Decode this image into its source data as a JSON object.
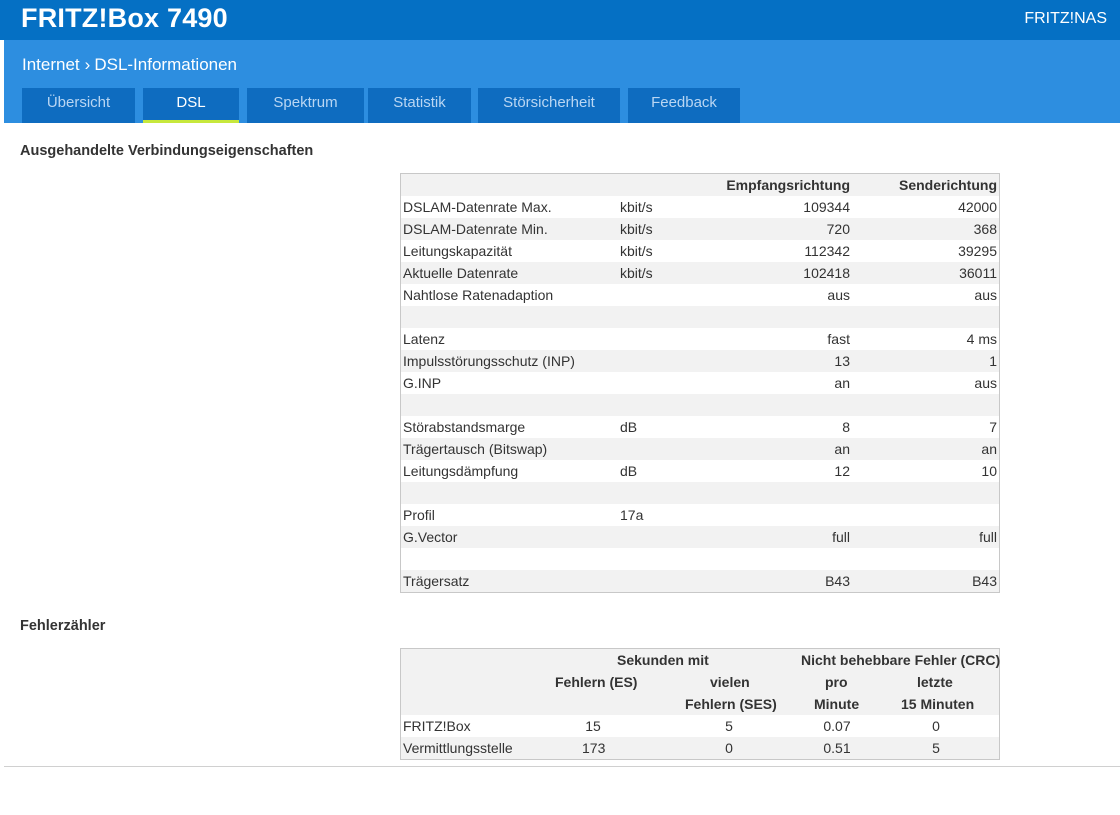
{
  "header": {
    "brand": "FRITZ!Box 7490",
    "nas_link": "FRITZ!NAS"
  },
  "breadcrumb": {
    "parent": "Internet",
    "separator": "›",
    "current": "DSL-Informationen"
  },
  "tabs": [
    {
      "label": "Übersicht",
      "active": false
    },
    {
      "label": "DSL",
      "active": true
    },
    {
      "label": "Spektrum",
      "active": false
    },
    {
      "label": "Statistik",
      "active": false
    },
    {
      "label": "Störsicherheit",
      "active": false
    },
    {
      "label": "Feedback",
      "active": false
    }
  ],
  "connection": {
    "title": "Ausgehandelte Verbindungseigenschaften",
    "col_rx": "Empfangsrichtung",
    "col_tx": "Senderichtung",
    "rows": [
      {
        "name": "DSLAM-Datenrate Max.",
        "unit": "kbit/s",
        "rx": "109344",
        "tx": "42000"
      },
      {
        "name": "DSLAM-Datenrate Min.",
        "unit": "kbit/s",
        "rx": "720",
        "tx": "368"
      },
      {
        "name": "Leitungskapazität",
        "unit": "kbit/s",
        "rx": "112342",
        "tx": "39295"
      },
      {
        "name": "Aktuelle Datenrate",
        "unit": "kbit/s",
        "rx": "102418",
        "tx": "36011"
      },
      {
        "name": "Nahtlose Ratenadaption",
        "unit": "",
        "rx": "aus",
        "tx": "aus"
      },
      {
        "name": "",
        "unit": "",
        "rx": "",
        "tx": ""
      },
      {
        "name": "Latenz",
        "unit": "",
        "rx": "fast",
        "tx": "4 ms"
      },
      {
        "name": "Impulsstörungsschutz (INP)",
        "unit": "",
        "rx": "13",
        "tx": "1"
      },
      {
        "name": "G.INP",
        "unit": "",
        "rx": "an",
        "tx": "aus"
      },
      {
        "name": "",
        "unit": "",
        "rx": "",
        "tx": ""
      },
      {
        "name": "Störabstandsmarge",
        "unit": "dB",
        "rx": "8",
        "tx": "7"
      },
      {
        "name": "Trägertausch (Bitswap)",
        "unit": "",
        "rx": "an",
        "tx": "an"
      },
      {
        "name": "Leitungsdämpfung",
        "unit": "dB",
        "rx": "12",
        "tx": "10"
      },
      {
        "name": "",
        "unit": "",
        "rx": "",
        "tx": ""
      },
      {
        "name": "Profil",
        "unit": "17a",
        "rx": "",
        "tx": ""
      },
      {
        "name": "G.Vector",
        "unit": "",
        "rx": "full",
        "tx": "full"
      },
      {
        "name": "",
        "unit": "",
        "rx": "",
        "tx": ""
      },
      {
        "name": "Trägersatz",
        "unit": "",
        "rx": "B43",
        "tx": "B43"
      }
    ]
  },
  "errors": {
    "title": "Fehlerzähler",
    "header_group1": "Sekunden mit",
    "header_group2": "Nicht behebbare Fehler (CRC)",
    "col_es": "Fehlern (ES)",
    "col_ses_1": "vielen",
    "col_ses_2": "Fehlern (SES)",
    "col_pm_1": "pro",
    "col_pm_2": "Minute",
    "col_l15_1": "letzte",
    "col_l15_2": "15 Minuten",
    "rows": [
      {
        "name": "FRITZ!Box",
        "es": "15",
        "ses": "5",
        "per_min": "0.07",
        "last15": "0"
      },
      {
        "name": "Vermittlungsstelle",
        "es": "173",
        "ses": "0",
        "per_min": "0.51",
        "last15": "5"
      }
    ]
  }
}
